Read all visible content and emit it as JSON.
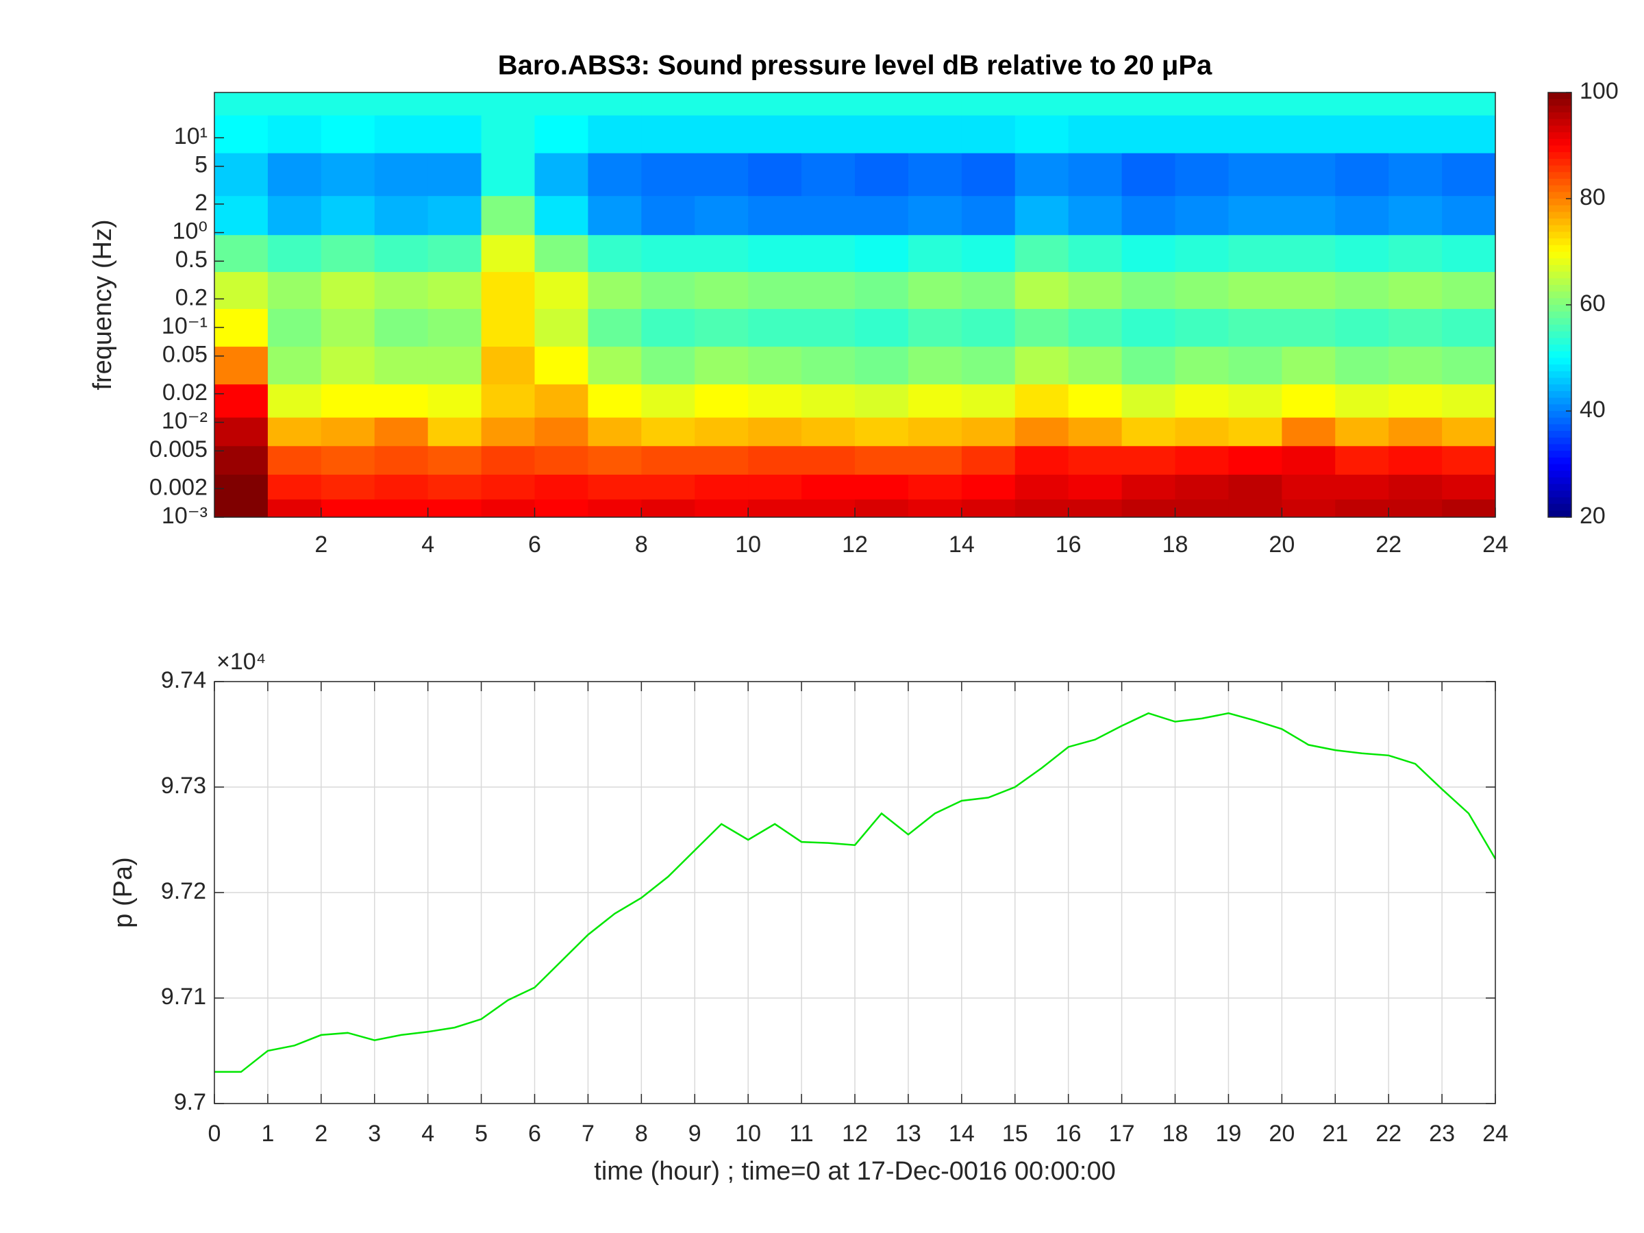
{
  "chart_data": [
    {
      "type": "heatmap",
      "title": "Baro.ABS3: Sound pressure level dB relative to 20 μPa",
      "ylabel": "frequency (Hz)",
      "colormap": "jet",
      "yscale": "log",
      "xlim": [
        0,
        24
      ],
      "xticks": [
        2,
        4,
        6,
        8,
        10,
        12,
        14,
        16,
        18,
        20,
        22,
        24
      ],
      "ylim": [
        0.001,
        30
      ],
      "yticks": [
        {
          "value": 0.001,
          "label": "10⁻³"
        },
        0.002,
        0.005,
        {
          "value": 0.01,
          "label": "10⁻²"
        },
        0.02,
        0.05,
        {
          "value": 0.1,
          "label": "10⁻¹"
        },
        0.2,
        0.5,
        {
          "value": 1,
          "label": "10⁰"
        },
        2,
        5,
        {
          "value": 10,
          "label": "10¹"
        }
      ],
      "clim": [
        20,
        100
      ],
      "cticks": [
        20,
        40,
        60,
        80,
        100
      ],
      "x": [
        0.5,
        1.5,
        2.5,
        3.5,
        4.5,
        5.5,
        6.5,
        7.5,
        8.5,
        9.5,
        10.5,
        11.5,
        12.5,
        13.5,
        14.5,
        15.5,
        16.5,
        17.5,
        18.5,
        19.5,
        20.5,
        21.5,
        22.5,
        23.5
      ],
      "y": [
        0.0012,
        0.002,
        0.004,
        0.008,
        0.016,
        0.04,
        0.1,
        0.25,
        0.6,
        1.5,
        4,
        12,
        25
      ],
      "z": [
        [
          100,
          92,
          90,
          90,
          90,
          91,
          90,
          91,
          92,
          91,
          92,
          92,
          93,
          92,
          93,
          94,
          94,
          95,
          95,
          95,
          94,
          95,
          95,
          96
        ],
        [
          100,
          88,
          87,
          88,
          87,
          88,
          89,
          88,
          88,
          89,
          89,
          90,
          90,
          89,
          90,
          92,
          91,
          93,
          94,
          95,
          93,
          93,
          94,
          93
        ],
        [
          98,
          84,
          83,
          84,
          83,
          85,
          84,
          83,
          84,
          84,
          85,
          85,
          84,
          84,
          86,
          89,
          88,
          88,
          89,
          90,
          91,
          88,
          89,
          88
        ],
        [
          95,
          76,
          77,
          80,
          74,
          78,
          80,
          76,
          74,
          75,
          76,
          75,
          74,
          75,
          76,
          79,
          77,
          74,
          75,
          74,
          80,
          76,
          78,
          76
        ],
        [
          90,
          68,
          70,
          70,
          69,
          74,
          76,
          70,
          68,
          70,
          69,
          68,
          67,
          69,
          68,
          72,
          70,
          67,
          69,
          68,
          70,
          68,
          69,
          68
        ],
        [
          80,
          62,
          65,
          63,
          63,
          75,
          70,
          63,
          60,
          62,
          61,
          60,
          59,
          61,
          60,
          64,
          62,
          59,
          61,
          60,
          62,
          60,
          61,
          60
        ],
        [
          70,
          60,
          63,
          60,
          61,
          72,
          66,
          58,
          55,
          56,
          55,
          55,
          54,
          56,
          55,
          58,
          56,
          54,
          55,
          56,
          56,
          55,
          56,
          55
        ],
        [
          66,
          62,
          65,
          63,
          64,
          72,
          68,
          62,
          60,
          61,
          60,
          60,
          59,
          61,
          60,
          64,
          62,
          60,
          61,
          62,
          62,
          61,
          62,
          61
        ],
        [
          58,
          55,
          57,
          55,
          56,
          68,
          60,
          54,
          53,
          53,
          52,
          52,
          51,
          53,
          52,
          56,
          54,
          52,
          53,
          54,
          54,
          53,
          54,
          53
        ],
        [
          48,
          44,
          46,
          44,
          45,
          60,
          48,
          42,
          40,
          41,
          40,
          40,
          40,
          41,
          40,
          44,
          42,
          40,
          41,
          42,
          42,
          41,
          42,
          41
        ],
        [
          46,
          42,
          43,
          42,
          42,
          52,
          44,
          40,
          39,
          39,
          38,
          39,
          38,
          39,
          38,
          41,
          40,
          38,
          39,
          40,
          40,
          39,
          40,
          39
        ],
        [
          50,
          49,
          50,
          49,
          49,
          52,
          50,
          48,
          48,
          48,
          48,
          48,
          48,
          48,
          48,
          49,
          48,
          48,
          48,
          48,
          48,
          48,
          48,
          48
        ],
        [
          52,
          52,
          52,
          52,
          52,
          52,
          52,
          52,
          52,
          52,
          52,
          52,
          52,
          52,
          52,
          52,
          52,
          52,
          52,
          52,
          52,
          52,
          52,
          52
        ]
      ]
    },
    {
      "type": "line",
      "xlabel": "time (hour) ; time=0 at 17-Dec-0016 00:00:00",
      "ylabel": "p (Pa)",
      "y_multiplier_label": "×10⁴",
      "color": "#00e600",
      "grid": true,
      "xlim": [
        0,
        24
      ],
      "xticks": [
        0,
        1,
        2,
        3,
        4,
        5,
        6,
        7,
        8,
        9,
        10,
        11,
        12,
        13,
        14,
        15,
        16,
        17,
        18,
        19,
        20,
        21,
        22,
        23,
        24
      ],
      "ylim": [
        9.7,
        9.74
      ],
      "yticks": [
        9.7,
        9.71,
        9.72,
        9.73,
        9.74
      ],
      "x": [
        0,
        0.5,
        1,
        1.5,
        2,
        2.5,
        3,
        3.5,
        4,
        4.5,
        5,
        5.5,
        6,
        6.5,
        7,
        7.5,
        8,
        8.5,
        9,
        9.5,
        10,
        10.5,
        11,
        11.5,
        12,
        12.5,
        13,
        13.5,
        14,
        14.5,
        15,
        15.5,
        16,
        16.5,
        17,
        17.5,
        18,
        18.5,
        19,
        19.5,
        20,
        20.5,
        21,
        21.5,
        22,
        22.5,
        23,
        23.5,
        24
      ],
      "values": [
        9.703,
        9.703,
        9.705,
        9.7055,
        9.7065,
        9.7067,
        9.706,
        9.7065,
        9.7068,
        9.7072,
        9.708,
        9.7098,
        9.711,
        9.7135,
        9.716,
        9.718,
        9.7195,
        9.7215,
        9.724,
        9.7265,
        9.725,
        9.7265,
        9.7248,
        9.7247,
        9.7245,
        9.7275,
        9.7255,
        9.7275,
        9.7287,
        9.729,
        9.73,
        9.7318,
        9.7338,
        9.7345,
        9.7358,
        9.737,
        9.7362,
        9.7365,
        9.737,
        9.7363,
        9.7355,
        9.734,
        9.7335,
        9.7332,
        9.733,
        9.7322,
        9.7298,
        9.7275,
        9.7232
      ]
    }
  ]
}
